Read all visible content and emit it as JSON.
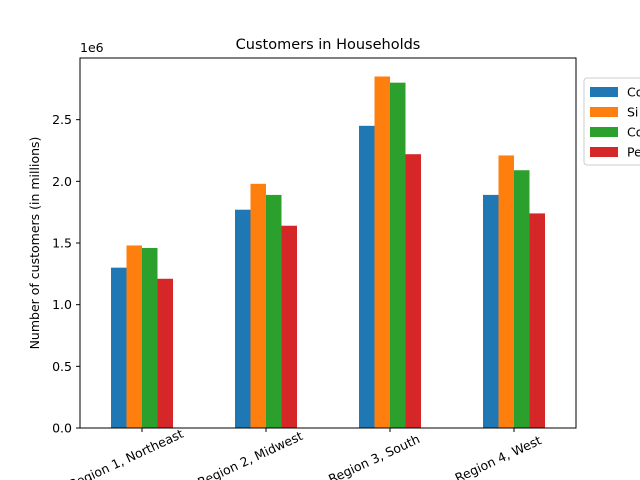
{
  "chart_data": {
    "type": "bar",
    "title": "Customers in Households",
    "ylabel": "Number of customers (in millions)",
    "xlabel": "",
    "scale_note": "1e6",
    "categories": [
      "Region 1, Northeast",
      "Region 2, Midwest",
      "Region 3, South",
      "Region 4, West"
    ],
    "ylim": [
      0,
      3000000
    ],
    "yticks": [
      0,
      500000,
      1000000,
      1500000,
      2000000,
      2500000
    ],
    "ytick_labels": [
      "0.0",
      "0.5",
      "1.0",
      "1.5",
      "2.0",
      "2.5"
    ],
    "legend_position": "outside-top-right",
    "grid": false,
    "series": [
      {
        "name": "Co",
        "color": "#1f77b4",
        "values": [
          1300000,
          1770000,
          2450000,
          1890000
        ]
      },
      {
        "name": "Si",
        "color": "#ff7f0e",
        "values": [
          1480000,
          1980000,
          2850000,
          2210000
        ]
      },
      {
        "name": "Co",
        "color": "#2ca02c",
        "values": [
          1460000,
          1890000,
          2800000,
          2090000
        ]
      },
      {
        "name": "Pe",
        "color": "#d62728",
        "values": [
          1210000,
          1640000,
          2220000,
          1740000
        ]
      }
    ]
  }
}
